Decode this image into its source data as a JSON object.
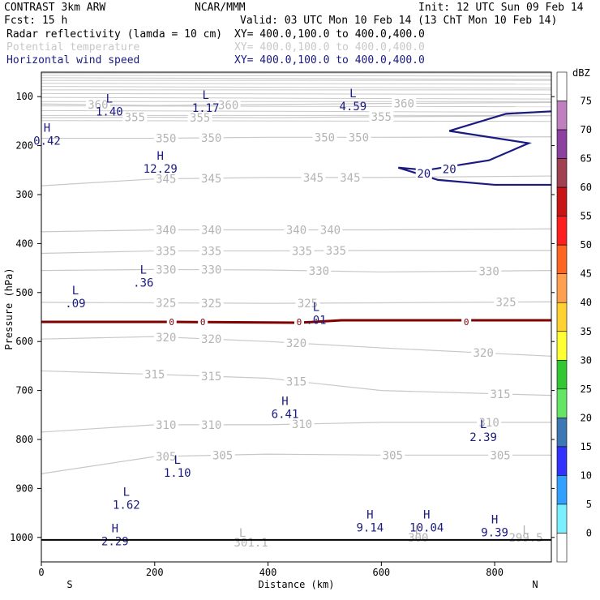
{
  "header": {
    "line1_left": "CONTRAST  3km ARW",
    "line1_center": "NCAR/MMM",
    "line1_right": "Init: 12 UTC Sun 09 Feb 14",
    "line2_left": "Fcst:    15 h",
    "line2_right": "Valid: 03 UTC Mon 10 Feb 14 (13 ChT Mon 10 Feb 14)",
    "fields": [
      {
        "name": "Radar reflectivity (lamda = 10 cm)",
        "xy": "XY= 400.0,100.0 to 400.0,400.0",
        "color": "#000000"
      },
      {
        "name": "Potential temperature",
        "xy": "XY= 400.0,100.0 to 400.0,400.0",
        "color": "#c8c8c8"
      },
      {
        "name": "Horizontal wind speed",
        "xy": "XY= 400.0,100.0 to 400.0,400.0",
        "color": "#1a1a80"
      }
    ]
  },
  "colorbar": {
    "unit": "dBZ",
    "levels": [
      "75",
      "70",
      "65",
      "60",
      "55",
      "50",
      "45",
      "40",
      "35",
      "30",
      "25",
      "20",
      "15",
      "10",
      "5",
      "0"
    ],
    "colors": [
      "#ffffff",
      "#c080c0",
      "#8c40a0",
      "#a04050",
      "#c81414",
      "#ff1e1e",
      "#ff6420",
      "#ffa050",
      "#ffd232",
      "#ffff32",
      "#32c832",
      "#64e664",
      "#3c78b4",
      "#3232ff",
      "#32a0ff",
      "#78f0ff",
      "#ffffff"
    ]
  },
  "chart_data": {
    "type": "cross-section",
    "xlabel": "Distance (km)",
    "ylabel": "Pressure (hPa)",
    "xlim": [
      0,
      900
    ],
    "ylim": [
      1050,
      50
    ],
    "xticks": [
      "0",
      "200",
      "400",
      "600",
      "800"
    ],
    "xtick_values": [
      0,
      200,
      400,
      600,
      800
    ],
    "yticks": [
      "100",
      "200",
      "300",
      "400",
      "500",
      "600",
      "700",
      "800",
      "900",
      "1000"
    ],
    "ytick_values": [
      100,
      200,
      300,
      400,
      500,
      600,
      700,
      800,
      900,
      1000
    ],
    "x_end_labels": {
      "left": "S",
      "right": "N"
    },
    "theta_contours": [
      {
        "level": 360,
        "label": "360",
        "points": [
          [
            0,
            115
          ],
          [
            200,
            118
          ],
          [
            400,
            116
          ],
          [
            600,
            114
          ],
          [
            900,
            112
          ]
        ],
        "label_x": [
          100,
          330,
          640
        ]
      },
      {
        "level": 355,
        "label": "355",
        "points": [
          [
            0,
            143
          ],
          [
            200,
            142
          ],
          [
            400,
            143
          ],
          [
            600,
            141
          ],
          [
            900,
            139
          ]
        ],
        "label_x": [
          165,
          280,
          600
        ]
      },
      {
        "level": 350,
        "label": "350",
        "points": [
          [
            0,
            185
          ],
          [
            200,
            185
          ],
          [
            400,
            183
          ],
          [
            600,
            183
          ],
          [
            900,
            182
          ]
        ],
        "label_x": [
          220,
          300,
          500,
          560
        ]
      },
      {
        "level": 345,
        "label": "345",
        "points": [
          [
            0,
            282
          ],
          [
            200,
            268
          ],
          [
            400,
            265
          ],
          [
            600,
            265
          ],
          [
            900,
            262
          ]
        ],
        "label_x": [
          220,
          300,
          480,
          545
        ]
      },
      {
        "level": 340,
        "label": "340",
        "points": [
          [
            0,
            376
          ],
          [
            200,
            372
          ],
          [
            400,
            372
          ],
          [
            600,
            372
          ],
          [
            900,
            370
          ]
        ],
        "label_x": [
          220,
          300,
          450,
          510
        ]
      },
      {
        "level": 335,
        "label": "335",
        "points": [
          [
            0,
            420
          ],
          [
            200,
            415
          ],
          [
            400,
            415
          ],
          [
            600,
            414
          ],
          [
            900,
            414
          ]
        ],
        "label_x": [
          220,
          300,
          460,
          520
        ]
      },
      {
        "level": 330,
        "label": "330",
        "points": [
          [
            0,
            455
          ],
          [
            200,
            453
          ],
          [
            400,
            454
          ],
          [
            600,
            458
          ],
          [
            900,
            455
          ]
        ],
        "label_x": [
          220,
          300,
          490,
          790
        ]
      },
      {
        "level": 325,
        "label": "325",
        "points": [
          [
            0,
            520
          ],
          [
            200,
            521
          ],
          [
            400,
            522
          ],
          [
            600,
            521
          ],
          [
            900,
            519
          ]
        ],
        "label_x": [
          220,
          300,
          470,
          820
        ]
      },
      {
        "level": 320,
        "label": "320",
        "points": [
          [
            0,
            595
          ],
          [
            200,
            590
          ],
          [
            400,
            600
          ],
          [
            600,
            613
          ],
          [
            900,
            630
          ]
        ],
        "label_x": [
          220,
          300,
          450,
          780
        ]
      },
      {
        "level": 315,
        "label": "315",
        "points": [
          [
            0,
            660
          ],
          [
            200,
            667
          ],
          [
            400,
            675
          ],
          [
            600,
            700
          ],
          [
            900,
            710
          ]
        ],
        "label_x": [
          200,
          300,
          450,
          810
        ]
      },
      {
        "level": 310,
        "label": "310",
        "points": [
          [
            0,
            785
          ],
          [
            200,
            770
          ],
          [
            400,
            770
          ],
          [
            600,
            765
          ],
          [
            900,
            765
          ]
        ],
        "label_x": [
          220,
          300,
          460,
          790
        ]
      },
      {
        "level": 305,
        "label": "305",
        "points": [
          [
            0,
            870
          ],
          [
            200,
            835
          ],
          [
            400,
            830
          ],
          [
            600,
            832
          ],
          [
            900,
            832
          ]
        ],
        "label_x": [
          220,
          320,
          620,
          810
        ]
      }
    ],
    "theta_annotations": [
      {
        "text": "L",
        "x": 355,
        "p": 990
      },
      {
        "text": "301.1",
        "x": 370,
        "p": 1010
      },
      {
        "text": "L",
        "x": 665,
        "p": 985
      },
      {
        "text": "300",
        "x": 665,
        "p": 1000
      },
      {
        "text": "L",
        "x": 855,
        "p": 985
      },
      {
        "text": "299.5",
        "x": 855,
        "p": 1000
      }
    ],
    "wind_speed_contour": {
      "level": 20,
      "label": "20",
      "color": "#1a1a80",
      "points": [
        [
          900,
          130
        ],
        [
          820,
          135
        ],
        [
          720,
          170
        ],
        [
          860,
          195
        ],
        [
          790,
          230
        ],
        [
          680,
          250
        ],
        [
          630,
          245
        ],
        [
          700,
          270
        ],
        [
          800,
          280
        ],
        [
          900,
          280
        ]
      ],
      "label_positions": [
        [
          675,
          257
        ],
        [
          720,
          248
        ]
      ]
    },
    "extrema": [
      {
        "type": "L",
        "value": "1.40",
        "x": 120,
        "p": 115
      },
      {
        "type": "L",
        "value": "1.17",
        "x": 290,
        "p": 108
      },
      {
        "type": "L",
        "value": "4.59",
        "x": 550,
        "p": 105
      },
      {
        "type": "H",
        "value": "0.42",
        "x": 10,
        "p": 175
      },
      {
        "type": "H",
        "value": "12.29",
        "x": 210,
        "p": 232
      },
      {
        "type": "L",
        "value": ".36",
        "x": 180,
        "p": 465
      },
      {
        "type": "L",
        "value": ".09",
        "x": 60,
        "p": 507
      },
      {
        "type": "L",
        "value": ".01",
        "x": 485,
        "p": 541
      },
      {
        "type": "H",
        "value": "6.41",
        "x": 430,
        "p": 733
      },
      {
        "type": "L",
        "value": "2.39",
        "x": 780,
        "p": 780
      },
      {
        "type": "L",
        "value": "1.10",
        "x": 240,
        "p": 853
      },
      {
        "type": "L",
        "value": "1.62",
        "x": 150,
        "p": 918
      },
      {
        "type": "H",
        "value": "9.14",
        "x": 580,
        "p": 965
      },
      {
        "type": "H",
        "value": "10.04",
        "x": 680,
        "p": 965
      },
      {
        "type": "H",
        "value": "9.39",
        "x": 800,
        "p": 975
      },
      {
        "type": "H",
        "value": "2.29",
        "x": 130,
        "p": 993
      }
    ],
    "reflectivity_zero_line": {
      "p": 560,
      "label": "0",
      "label_x": [
        230,
        285,
        455,
        750
      ],
      "color": "#800000"
    },
    "surface_line_p": 1005
  }
}
